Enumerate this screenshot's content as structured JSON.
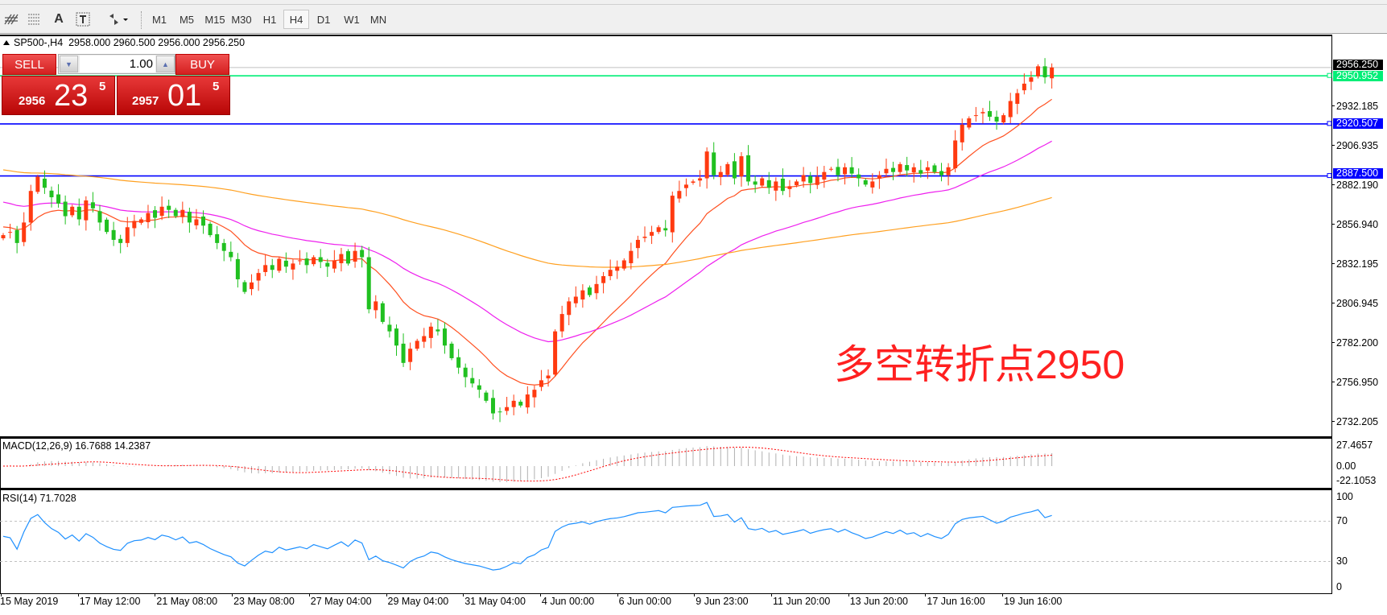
{
  "toolbar": {
    "tools": [
      "fibo-expansion-icon",
      "fibo-fan-icon",
      "text-icon",
      "text-label-icon",
      "arrows-icon"
    ],
    "text_tool_label": "A",
    "timeframes": [
      "M1",
      "M5",
      "M15",
      "M30",
      "H1",
      "H4",
      "D1",
      "W1",
      "MN"
    ],
    "selected_timeframe": "H4"
  },
  "chart": {
    "title": "SP500-,H4  2958.000 2960.500 2956.000 2956.250",
    "annotation": "多空转折点2950",
    "price_ticks": [
      "2932.185",
      "2906.935",
      "2882.190",
      "2856.940",
      "2832.195",
      "2806.945",
      "2782.200",
      "2756.950",
      "2732.205"
    ],
    "bid": {
      "label": "2956.250",
      "value": 2956.25,
      "color": "#000000"
    },
    "levels": [
      {
        "label": "2950.952",
        "value": 2950.952,
        "color": "#00ee77"
      },
      {
        "label": "2920.507",
        "value": 2920.507,
        "color": "#0000ff"
      },
      {
        "label": "2887.500",
        "value": 2887.5,
        "color": "#0000ff"
      }
    ],
    "colors": {
      "up": "#ff3a10",
      "down": "#20c020",
      "ma_fast": "#ff5020",
      "ma_mid": "#ee20ee",
      "ma_slow": "#ffa020"
    },
    "closes": [
      2850,
      2852,
      2845,
      2858,
      2878,
      2887,
      2880,
      2874,
      2870,
      2862,
      2868,
      2860,
      2872,
      2867,
      2858,
      2852,
      2847,
      2845,
      2855,
      2859,
      2860,
      2864,
      2861,
      2868,
      2866,
      2862,
      2866,
      2858,
      2860,
      2856,
      2850,
      2845,
      2840,
      2836,
      2822,
      2814,
      2820,
      2826,
      2831,
      2828,
      2835,
      2830,
      2832,
      2834,
      2831,
      2836,
      2833,
      2830,
      2834,
      2838,
      2832,
      2840,
      2836,
      2803,
      2808,
      2795,
      2789,
      2780,
      2769,
      2778,
      2783,
      2786,
      2792,
      2789,
      2780,
      2772,
      2766,
      2760,
      2756,
      2752,
      2745,
      2737,
      2738,
      2741,
      2745,
      2742,
      2749,
      2752,
      2758,
      2761,
      2789,
      2800,
      2808,
      2811,
      2815,
      2812,
      2819,
      2824,
      2828,
      2830,
      2834,
      2840,
      2847,
      2849,
      2852,
      2855,
      2853,
      2875,
      2878,
      2882,
      2884,
      2886,
      2903,
      2888,
      2890,
      2895,
      2886,
      2900,
      2884,
      2882,
      2886,
      2880,
      2884,
      2878,
      2881,
      2884,
      2888,
      2883,
      2887,
      2890,
      2892,
      2888,
      2893,
      2889,
      2886,
      2882,
      2884,
      2888,
      2892,
      2890,
      2895,
      2891,
      2893,
      2889,
      2893,
      2890,
      2888,
      2893,
      2910,
      2920,
      2924,
      2926,
      2928,
      2925,
      2922,
      2926,
      2935,
      2940,
      2946,
      2950,
      2957,
      2950,
      2956.25
    ]
  },
  "trade": {
    "sell_label": "SELL",
    "buy_label": "BUY",
    "lot": "1.00",
    "sell_price": {
      "prefix": "2956",
      "big": "23",
      "sup": "5"
    },
    "buy_price": {
      "prefix": "2957",
      "big": "01",
      "sup": "5"
    }
  },
  "macd": {
    "label": "MACD(12,26,9) 16.7688 14.2387",
    "ticks": [
      "27.4657",
      "0.00",
      "-22.1053"
    ]
  },
  "rsi": {
    "label": "RSI(14) 71.7028",
    "ticks": [
      "100",
      "70",
      "30",
      "0"
    ],
    "levels": [
      70,
      30
    ],
    "color": "#1e90ff"
  },
  "dates": [
    "15 May 2019",
    "17 May 12:00",
    "21 May 08:00",
    "23 May 08:00",
    "27 May 04:00",
    "29 May 04:00",
    "31 May 04:00",
    "4 Jun 00:00",
    "6 Jun 00:00",
    "9 Jun 23:00",
    "11 Jun 20:00",
    "13 Jun 20:00",
    "17 Jun 16:00",
    "19 Jun 16:00"
  ]
}
